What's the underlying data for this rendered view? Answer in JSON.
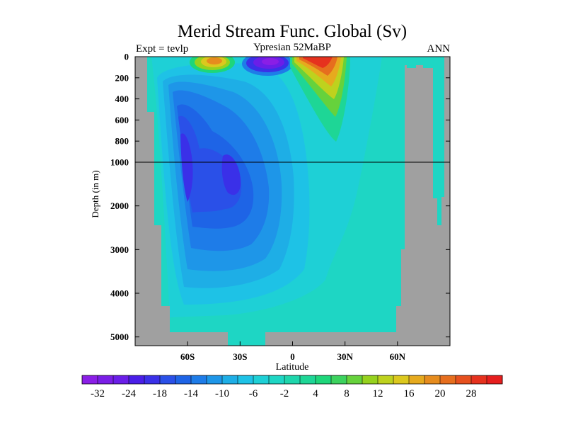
{
  "chart_data": {
    "type": "heatmap",
    "title": "Merid Stream Func. Global (Sv)",
    "header_left": "Expt = tevlp",
    "header_center": "Ypresian  52MaBP",
    "header_right": "ANN",
    "xlabel": "Latitude",
    "ylabel": "Depth (in m)",
    "x_ticks": [
      "60S",
      "30S",
      "0",
      "30N",
      "60N"
    ],
    "x_tick_values": [
      -60,
      -30,
      0,
      30,
      60
    ],
    "xlim": [
      -90,
      90
    ],
    "y_ticks": [
      "0",
      "200",
      "400",
      "600",
      "800",
      "1000",
      "2000",
      "3000",
      "4000",
      "5000"
    ],
    "y_tick_values": [
      0,
      200,
      400,
      600,
      800,
      1000,
      2000,
      3000,
      4000,
      5000
    ],
    "ylim": [
      0,
      5200
    ],
    "y_scale": "piecewise: 0–1000 m stretched, 1000–5200 m compressed",
    "reference_line_depth": 1000,
    "colorbar": {
      "tick_labels": [
        "-32",
        "-24",
        "-18",
        "-14",
        "-10",
        "-6",
        "-2",
        "4",
        "8",
        "12",
        "16",
        "20",
        "28"
      ],
      "colors": [
        "#8a1ee6",
        "#7a1ee6",
        "#6a1ee8",
        "#4a1ee8",
        "#3a30e8",
        "#2a50e8",
        "#1e64e6",
        "#1e7ce8",
        "#1e96e8",
        "#1eaee6",
        "#1ec2e6",
        "#1ed0d6",
        "#1ed6c4",
        "#1ed6ac",
        "#1ed696",
        "#1ed67a",
        "#3cd25e",
        "#66d23c",
        "#96d21e",
        "#bed21e",
        "#dcc81e",
        "#e6aa1e",
        "#e68c1e",
        "#e66e1e",
        "#e6501e",
        "#e6321e",
        "#e61e1e"
      ]
    },
    "land_color": "#a0a0a0",
    "ocean_background_color": "#1ed6c4",
    "features": [
      {
        "description": "deep negative cell, southern hemisphere",
        "lat": -60,
        "depth": 1200,
        "value": -24
      },
      {
        "description": "negative cell centered near 33S",
        "lat": -33,
        "depth": 1400,
        "value": -16
      },
      {
        "description": "surface positive cell near 50S",
        "lat": -45,
        "depth": 40,
        "value": 16
      },
      {
        "description": "surface negative cell near 10S",
        "lat": -8,
        "depth": 40,
        "value": -28
      },
      {
        "description": "strong surface positive cell near 12N",
        "lat": 12,
        "depth": 50,
        "value": 28
      }
    ]
  }
}
